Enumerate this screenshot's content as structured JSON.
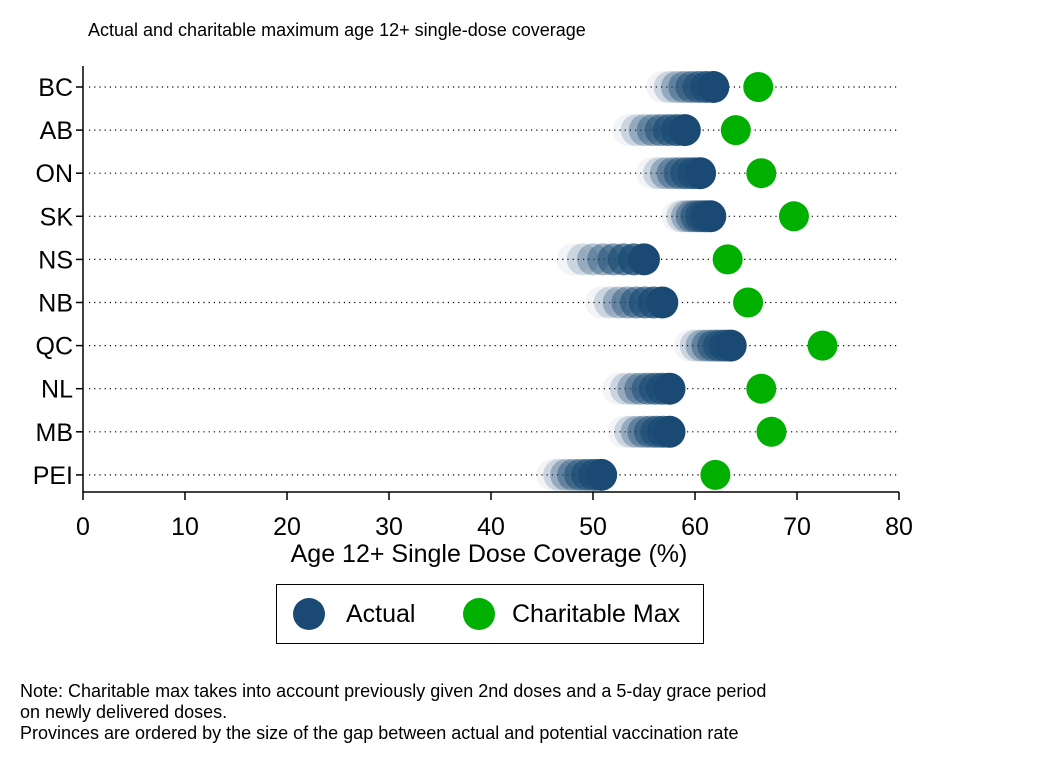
{
  "chart_data": {
    "type": "scatter",
    "title": "Actual and charitable maximum age 12+ single-dose coverage",
    "xlabel": "Age 12+ Single Dose Coverage (%)",
    "ylabel": "",
    "xlim": [
      0,
      80
    ],
    "xticks": [
      0,
      10,
      20,
      30,
      40,
      50,
      60,
      70,
      80
    ],
    "grid": "dotted horizontal lines per category",
    "legend_position": "bottom",
    "categories": [
      "BC",
      "AB",
      "ON",
      "SK",
      "NS",
      "NB",
      "QC",
      "NL",
      "MB",
      "PEI"
    ],
    "series": [
      {
        "name": "Actual",
        "color": "#1a4a73",
        "values": [
          61.8,
          59.0,
          60.5,
          61.5,
          55.0,
          56.8,
          63.5,
          57.5,
          57.5,
          50.8
        ],
        "trail_start": [
          56.8,
          53.5,
          55.8,
          58.3,
          48.0,
          50.8,
          59.5,
          52.5,
          53.0,
          46.0
        ]
      },
      {
        "name": "Charitable Max",
        "color": "#00b000",
        "values": [
          66.2,
          64.0,
          66.5,
          69.7,
          63.2,
          65.2,
          72.5,
          66.5,
          67.5,
          62.0
        ]
      }
    ]
  },
  "legend": {
    "actual_label": "Actual",
    "charitable_label": "Charitable Max"
  },
  "note": {
    "line1": "Note: Charitable max takes into account previously given 2nd doses and a 5-day grace period",
    "line2": "on newly delivered doses.",
    "line3": "Provinces are ordered by the size of the gap between actual and potential vaccination rate"
  }
}
